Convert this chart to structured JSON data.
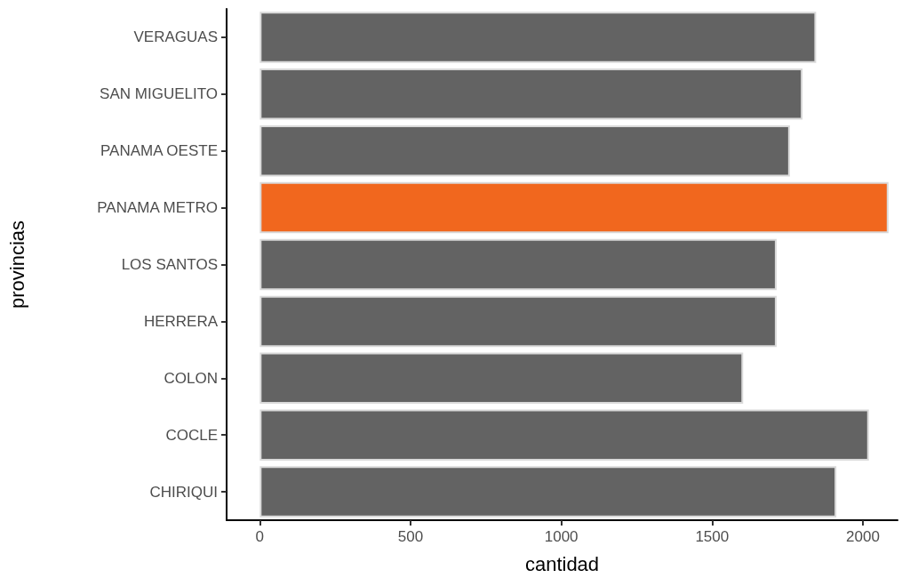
{
  "chart_data": {
    "type": "bar",
    "orientation": "horizontal",
    "xlabel": "cantidad",
    "ylabel": "provincias",
    "categories": [
      "VERAGUAS",
      "SAN MIGUELITO",
      "PANAMA OESTE",
      "PANAMA METRO",
      "LOS SANTOS",
      "HERRERA",
      "COLON",
      "COCLE",
      "CHIRIQUI"
    ],
    "values": [
      1845,
      1800,
      1758,
      2085,
      1714,
      1714,
      1603,
      2020,
      1912
    ],
    "colors": [
      "#636363",
      "#636363",
      "#636363",
      "#f1671e",
      "#636363",
      "#636363",
      "#636363",
      "#636363",
      "#636363"
    ],
    "xlim": [
      -110,
      2115
    ],
    "xticks": [
      0,
      500,
      {
        "value": 1000,
        "label": "1000"
      },
      {
        "value": 1500,
        "label": "1500"
      },
      {
        "value": 2000,
        "label": "2000"
      }
    ],
    "grid": false
  }
}
